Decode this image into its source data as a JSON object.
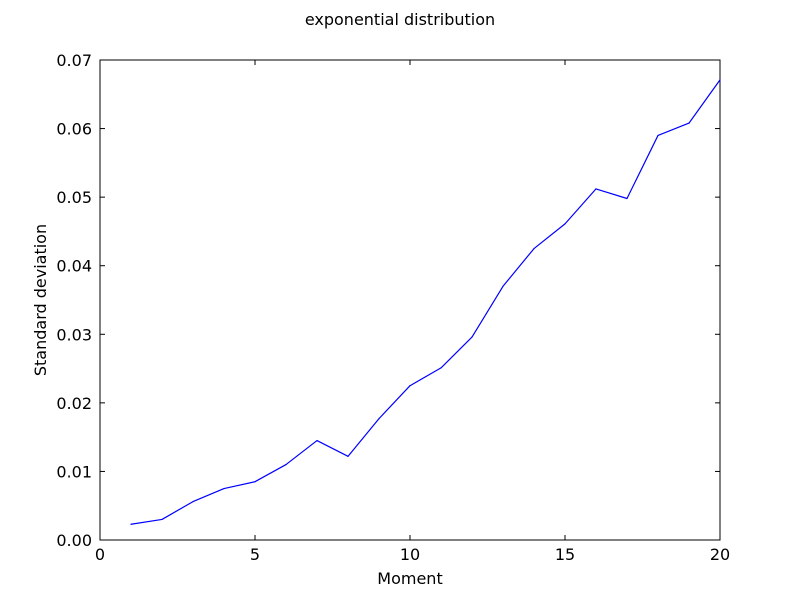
{
  "chart_data": {
    "type": "line",
    "title": "exponential distribution",
    "xlabel": "Moment",
    "ylabel": "Standard deviation",
    "xlim": [
      0,
      20
    ],
    "ylim": [
      0.0,
      0.07
    ],
    "xticks": [
      0,
      5,
      10,
      15,
      20
    ],
    "xtick_labels": [
      "0",
      "5",
      "10",
      "15",
      "20"
    ],
    "yticks": [
      0.0,
      0.01,
      0.02,
      0.03,
      0.04,
      0.05,
      0.06,
      0.07
    ],
    "ytick_labels": [
      "0.00",
      "0.01",
      "0.02",
      "0.03",
      "0.04",
      "0.05",
      "0.06",
      "0.07"
    ],
    "grid": false,
    "series": [
      {
        "color": "#0000ff",
        "x": [
          1,
          2,
          3,
          4,
          5,
          6,
          7,
          8,
          9,
          10,
          11,
          12,
          13,
          14,
          15,
          16,
          17,
          18,
          19,
          20
        ],
        "y": [
          0.0023,
          0.003,
          0.0056,
          0.0075,
          0.0085,
          0.011,
          0.0145,
          0.0122,
          0.0177,
          0.0225,
          0.0251,
          0.0296,
          0.037,
          0.0425,
          0.0461,
          0.0512,
          0.0498,
          0.059,
          0.0608,
          0.0671
        ]
      }
    ]
  }
}
